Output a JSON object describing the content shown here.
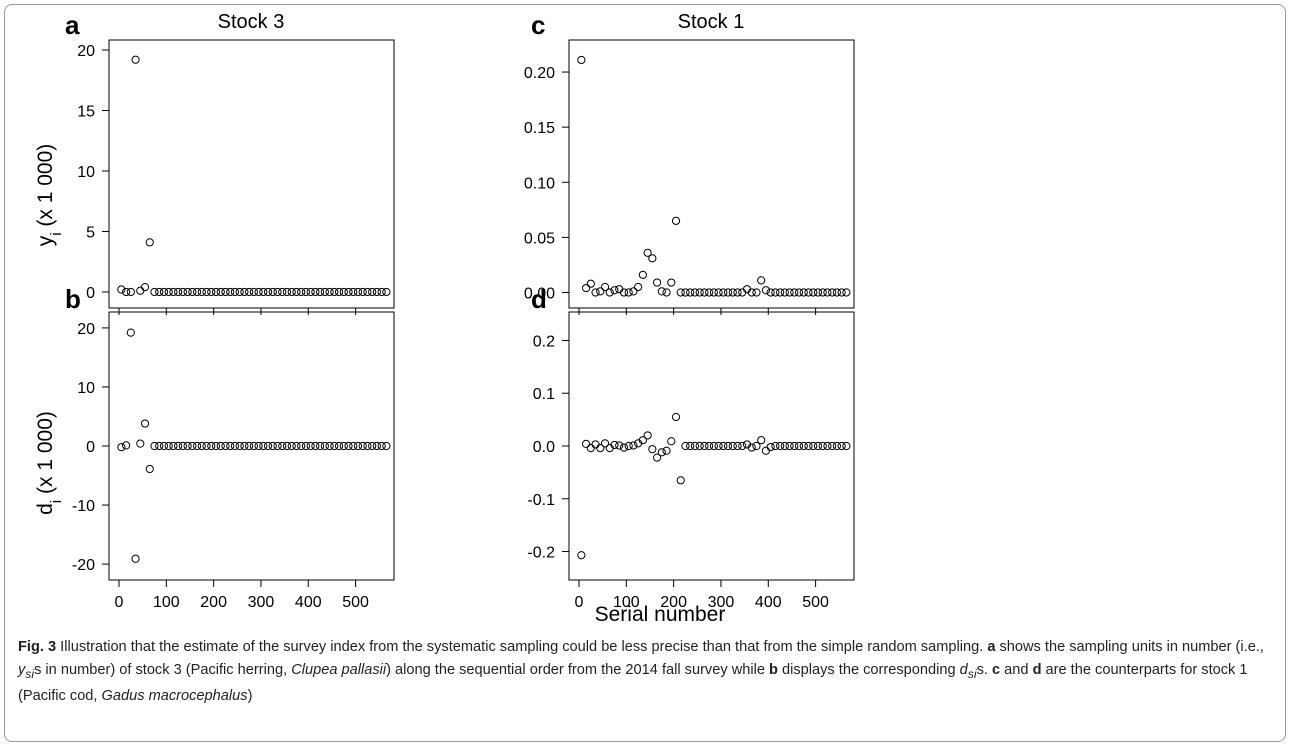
{
  "caption": {
    "fig_label": "Fig. 3",
    "p1": " Illustration that the estimate of the survey index from the systematic sampling could be less precise than that from the simple random sampling. ",
    "a": "a",
    "p2": " shows the sampling units in number (i.e., ",
    "ysis": "y",
    "ysis_sub": "si",
    "p3": "s in number) of stock 3 (Pacific herring, ",
    "sp1": "Clupea pallasii",
    "p4": ") along the sequential order from the 2014 fall survey while ",
    "b": "b",
    "p5": " displays the corresponding ",
    "dsis": "d",
    "dsis_sub": "si",
    "p6": "s. ",
    "c": "c",
    "p7": " and ",
    "d": "d",
    "p8": " are the counterparts for stock 1 (Pacific cod, ",
    "sp2": "Gadus macrocephalus",
    "p9": ")"
  },
  "figure": {
    "xlabel": "Serial number",
    "ylabel_top": {
      "base": "y",
      "sub": "i",
      "rest": " (x 1 000)"
    },
    "ylabel_bottom": {
      "base": "d",
      "sub": "i",
      "rest": " (x 1 000)"
    }
  },
  "chart_data": [
    {
      "panel": "a",
      "type": "scatter",
      "title": "Stock 3",
      "xlim": [
        0,
        560
      ],
      "ylim": [
        -0.5,
        20
      ],
      "xticks": [
        0,
        100,
        200,
        300,
        400,
        500
      ],
      "yticks": [
        0,
        5,
        10,
        15,
        20
      ],
      "show_xtick_labels": false,
      "x": [
        5,
        15,
        25,
        35,
        45,
        55,
        65,
        75,
        85,
        95,
        105,
        115,
        125,
        135,
        145,
        155,
        165,
        175,
        185,
        195,
        205,
        215,
        225,
        235,
        245,
        255,
        265,
        275,
        285,
        295,
        305,
        315,
        325,
        335,
        345,
        355,
        365,
        375,
        385,
        395,
        405,
        415,
        425,
        435,
        445,
        455,
        465,
        475,
        485,
        495,
        505,
        515,
        525,
        535,
        545,
        555,
        565
      ],
      "y": [
        0.2,
        0,
        0,
        19.2,
        0.1,
        0.4,
        4.1,
        0,
        0,
        0,
        0,
        0,
        0,
        0,
        0,
        0,
        0,
        0,
        0,
        0,
        0,
        0,
        0,
        0,
        0,
        0,
        0,
        0,
        0,
        0,
        0,
        0,
        0,
        0,
        0,
        0,
        0,
        0,
        0,
        0,
        0,
        0,
        0,
        0,
        0,
        0,
        0,
        0,
        0,
        0,
        0,
        0,
        0,
        0,
        0,
        0,
        0
      ]
    },
    {
      "panel": "b",
      "type": "scatter",
      "title": "",
      "xlim": [
        0,
        560
      ],
      "ylim": [
        -21,
        21
      ],
      "xticks": [
        0,
        100,
        200,
        300,
        400,
        500
      ],
      "yticks": [
        -20,
        -10,
        0,
        10,
        20
      ],
      "show_xtick_labels": true,
      "x": [
        5,
        15,
        25,
        35,
        45,
        55,
        65,
        75,
        85,
        95,
        105,
        115,
        125,
        135,
        145,
        155,
        165,
        175,
        185,
        195,
        205,
        215,
        225,
        235,
        245,
        255,
        265,
        275,
        285,
        295,
        305,
        315,
        325,
        335,
        345,
        355,
        365,
        375,
        385,
        395,
        405,
        415,
        425,
        435,
        445,
        455,
        465,
        475,
        485,
        495,
        505,
        515,
        525,
        535,
        545,
        555,
        565
      ],
      "y": [
        -0.2,
        0.1,
        19.2,
        -19.1,
        0.4,
        3.8,
        -3.9,
        0,
        0,
        0,
        0,
        0,
        0,
        0,
        0,
        0,
        0,
        0,
        0,
        0,
        0,
        0,
        0,
        0,
        0,
        0,
        0,
        0,
        0,
        0,
        0,
        0,
        0,
        0,
        0,
        0,
        0,
        0,
        0,
        0,
        0,
        0,
        0,
        0,
        0,
        0,
        0,
        0,
        0,
        0,
        0,
        0,
        0,
        0,
        0,
        0,
        0
      ]
    },
    {
      "panel": "c",
      "type": "scatter",
      "title": "Stock 1",
      "xlim": [
        0,
        560
      ],
      "ylim": [
        -0.005,
        0.22
      ],
      "xticks": [
        0,
        100,
        200,
        300,
        400,
        500
      ],
      "yticks": [
        0.0,
        0.05,
        0.1,
        0.15,
        0.2
      ],
      "show_xtick_labels": false,
      "x": [
        5,
        15,
        25,
        35,
        45,
        55,
        65,
        75,
        85,
        95,
        105,
        115,
        125,
        135,
        145,
        155,
        165,
        175,
        185,
        195,
        205,
        215,
        225,
        235,
        245,
        255,
        265,
        275,
        285,
        295,
        305,
        315,
        325,
        335,
        345,
        355,
        365,
        375,
        385,
        395,
        405,
        415,
        425,
        435,
        445,
        455,
        465,
        475,
        485,
        495,
        505,
        515,
        525,
        535,
        545,
        555,
        565
      ],
      "y": [
        0.211,
        0.004,
        0.008,
        0,
        0.001,
        0.005,
        0,
        0.002,
        0.003,
        0,
        0,
        0.001,
        0.005,
        0.016,
        0.036,
        0.031,
        0.009,
        0.001,
        0,
        0.009,
        0.065,
        0,
        0,
        0,
        0,
        0,
        0,
        0,
        0,
        0,
        0,
        0,
        0,
        0,
        0,
        0.003,
        0,
        0,
        0.011,
        0.002,
        0,
        0,
        0,
        0,
        0,
        0,
        0,
        0,
        0,
        0,
        0,
        0,
        0,
        0,
        0,
        0,
        0
      ]
    },
    {
      "panel": "d",
      "type": "scatter",
      "title": "",
      "xlim": [
        0,
        560
      ],
      "ylim": [
        -0.235,
        0.235
      ],
      "xticks": [
        0,
        100,
        200,
        300,
        400,
        500
      ],
      "yticks": [
        -0.2,
        -0.1,
        0.0,
        0.1,
        0.2
      ],
      "show_xtick_labels": true,
      "x": [
        5,
        15,
        25,
        35,
        45,
        55,
        65,
        75,
        85,
        95,
        105,
        115,
        125,
        135,
        145,
        155,
        165,
        175,
        185,
        195,
        205,
        215,
        225,
        235,
        245,
        255,
        265,
        275,
        285,
        295,
        305,
        315,
        325,
        335,
        345,
        355,
        365,
        375,
        385,
        395,
        405,
        415,
        425,
        435,
        445,
        455,
        465,
        475,
        485,
        495,
        505,
        515,
        525,
        535,
        545,
        555,
        565
      ],
      "y": [
        -0.207,
        0.004,
        -0.004,
        0.003,
        -0.004,
        0.005,
        -0.004,
        0.002,
        0.001,
        -0.003,
        0,
        0.001,
        0.005,
        0.011,
        0.02,
        -0.006,
        -0.022,
        -0.012,
        -0.009,
        0.009,
        0.055,
        -0.065,
        0,
        0,
        0,
        0,
        0,
        0,
        0,
        0,
        0,
        0,
        0,
        0,
        0,
        0.003,
        -0.003,
        0,
        0.011,
        -0.009,
        -0.002,
        0,
        0,
        0,
        0,
        0,
        0,
        0,
        0,
        0,
        0,
        0,
        0,
        0,
        0,
        0,
        0
      ]
    }
  ]
}
